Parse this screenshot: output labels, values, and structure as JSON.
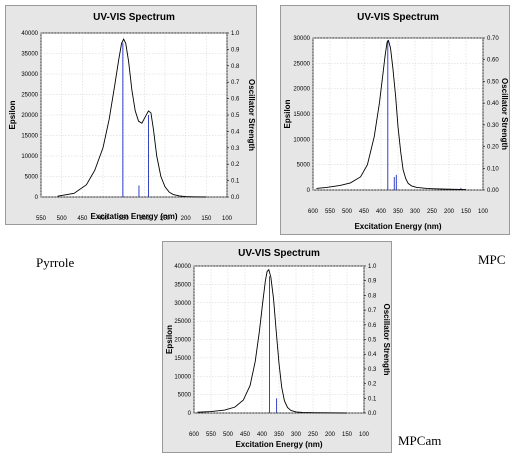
{
  "captions": {
    "pyrrole": "Pyrrole",
    "mpc": "MPC",
    "mpcam": "MPCam"
  },
  "colors": {
    "frame": "#e6e6e6",
    "curve": "#000000",
    "stick": "#1f2fbf"
  },
  "chart_data": [
    {
      "type": "line",
      "title": "UV-VIS Spectrum",
      "xlabel": "Excitation Energy (nm)",
      "ylabel": "Epsilon",
      "y2label": "Oscillator Strength",
      "xlim": [
        550,
        100
      ],
      "xticks": [
        550,
        500,
        450,
        400,
        350,
        300,
        250,
        200,
        150,
        100
      ],
      "ylim": [
        0,
        40000
      ],
      "yticks": [
        0,
        5000,
        10000,
        15000,
        20000,
        25000,
        30000,
        35000,
        40000
      ],
      "y2lim": [
        0,
        1.0
      ],
      "y2ticks": [
        "0.0",
        "0.1",
        "0.2",
        "0.3",
        "0.4",
        "0.5",
        "0.6",
        "0.7",
        "0.8",
        "0.9",
        "1.0"
      ],
      "grid": true,
      "series": [
        {
          "x": [
            510,
            470,
            440,
            420,
            400,
            385,
            372,
            362,
            355,
            350,
            345,
            338,
            330,
            322,
            314,
            306,
            298,
            290,
            284,
            278,
            270,
            260,
            250,
            240,
            230,
            215,
            200,
            180,
            150
          ],
          "y": [
            200,
            900,
            3000,
            6500,
            12000,
            19000,
            27000,
            33500,
            37500,
            38500,
            37500,
            33000,
            26000,
            21000,
            18500,
            18000,
            19500,
            21000,
            20500,
            16500,
            10000,
            5000,
            2500,
            1200,
            600,
            250,
            100,
            40,
            0
          ]
        }
      ],
      "sticks": [
        {
          "x": 352,
          "f": 0.94
        },
        {
          "x": 313,
          "f": 0.07
        },
        {
          "x": 290,
          "f": 0.5
        }
      ]
    },
    {
      "type": "line",
      "title": "UV-VIS Spectrum",
      "xlabel": "Excitation Energy (nm)",
      "ylabel": "Epsilon",
      "y2label": "Oscillator Strength",
      "xlim": [
        600,
        100
      ],
      "xticks": [
        600,
        550,
        500,
        450,
        400,
        350,
        300,
        250,
        200,
        150,
        100
      ],
      "ylim": [
        0,
        30000
      ],
      "yticks": [
        0,
        5000,
        10000,
        15000,
        20000,
        25000,
        30000
      ],
      "y2lim": [
        0,
        0.7
      ],
      "y2ticks": [
        "0.00",
        "0.10",
        "0.20",
        "0.30",
        "0.40",
        "0.50",
        "0.60",
        "0.70"
      ],
      "grid": true,
      "series": [
        {
          "x": [
            590,
            560,
            520,
            490,
            460,
            440,
            420,
            405,
            395,
            388,
            382,
            378,
            372,
            365,
            357,
            350,
            342,
            335,
            327,
            320,
            310,
            295,
            280,
            265,
            250,
            200,
            150
          ],
          "y": [
            300,
            500,
            900,
            1400,
            2600,
            5000,
            10500,
            17000,
            22500,
            26500,
            29200,
            29500,
            28000,
            24000,
            18500,
            12500,
            7500,
            4000,
            2200,
            1300,
            800,
            500,
            400,
            300,
            250,
            150,
            80
          ]
        }
      ],
      "sticks": [
        {
          "x": 380,
          "f": 0.69
        },
        {
          "x": 361,
          "f": 0.06
        },
        {
          "x": 355,
          "f": 0.07
        },
        {
          "x": 165,
          "f": 0.01
        }
      ]
    },
    {
      "type": "line",
      "title": "UV-VIS Spectrum",
      "xlabel": "Excitation Energy (nm)",
      "ylabel": "Epsilon",
      "y2label": "Oscillator Strength",
      "xlim": [
        600,
        100
      ],
      "xticks": [
        600,
        550,
        500,
        450,
        400,
        350,
        300,
        250,
        200,
        150,
        100
      ],
      "ylim": [
        0,
        40000
      ],
      "yticks": [
        0,
        5000,
        10000,
        15000,
        20000,
        25000,
        30000,
        35000,
        40000
      ],
      "y2lim": [
        0,
        1.0
      ],
      "y2ticks": [
        "0.0",
        "0.1",
        "0.2",
        "0.3",
        "0.4",
        "0.5",
        "0.6",
        "0.7",
        "0.8",
        "0.9",
        "1.0"
      ],
      "grid": true,
      "series": [
        {
          "x": [
            590,
            550,
            510,
            480,
            455,
            435,
            420,
            408,
            398,
            390,
            385,
            380,
            374,
            366,
            358,
            350,
            342,
            334,
            325,
            315,
            300,
            280,
            250,
            200,
            150
          ],
          "y": [
            200,
            400,
            800,
            1600,
            3500,
            7500,
            14000,
            22000,
            30000,
            36000,
            38500,
            39000,
            37000,
            31000,
            22000,
            13500,
            7000,
            3300,
            1500,
            700,
            300,
            150,
            80,
            40,
            0
          ]
        }
      ],
      "sticks": [
        {
          "x": 378,
          "f": 0.93
        },
        {
          "x": 357,
          "f": 0.1
        }
      ]
    }
  ]
}
